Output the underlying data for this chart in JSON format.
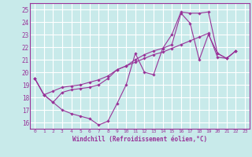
{
  "background_color": "#c8eaea",
  "grid_color": "#ffffff",
  "line_color": "#993399",
  "xlabel": "Windchill (Refroidissement éolien,°C)",
  "xlim": [
    -0.5,
    23.5
  ],
  "ylim": [
    15.5,
    25.5
  ],
  "yticks": [
    16,
    17,
    18,
    19,
    20,
    21,
    22,
    23,
    24,
    25
  ],
  "xticks": [
    0,
    1,
    2,
    3,
    4,
    5,
    6,
    7,
    8,
    9,
    10,
    11,
    12,
    13,
    14,
    15,
    16,
    17,
    18,
    19,
    20,
    21,
    22,
    23
  ],
  "series": [
    [
      19.5,
      18.2,
      17.6,
      17.0,
      16.7,
      16.5,
      16.3,
      15.8,
      16.1,
      17.5,
      19.0,
      21.5,
      20.0,
      19.8,
      21.9,
      22.2,
      24.7,
      23.9,
      21.0,
      23.0,
      21.5,
      21.1,
      21.7
    ],
    [
      19.5,
      18.2,
      18.5,
      18.8,
      18.9,
      19.0,
      19.2,
      19.4,
      19.7,
      20.2,
      20.5,
      20.8,
      21.1,
      21.4,
      21.6,
      21.9,
      22.2,
      22.5,
      22.8,
      23.1,
      21.2,
      21.1,
      21.7
    ],
    [
      19.5,
      18.2,
      17.6,
      18.4,
      18.6,
      18.7,
      18.8,
      19.0,
      19.5,
      20.2,
      20.5,
      21.0,
      21.4,
      21.7,
      21.9,
      23.0,
      24.8,
      24.7,
      24.7,
      24.8,
      21.5,
      21.1,
      21.7
    ]
  ]
}
